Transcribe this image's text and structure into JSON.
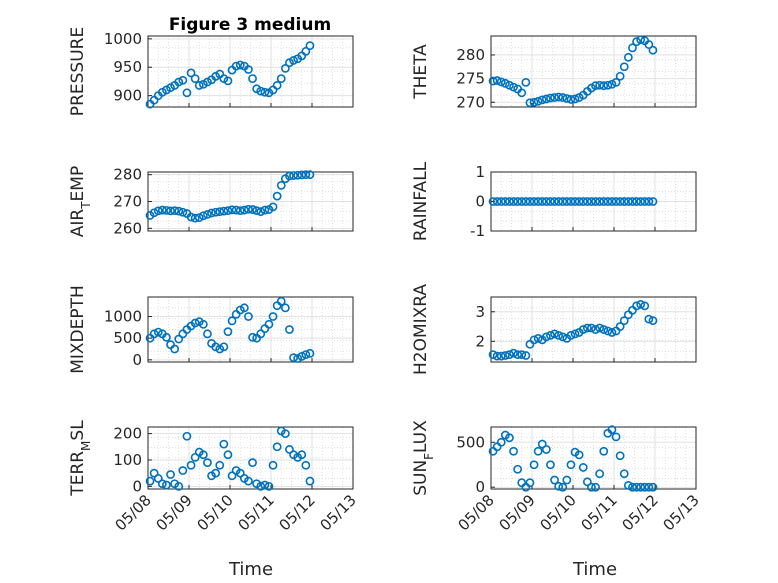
{
  "figure_title": "Figure 3 medium",
  "x_label": "Time",
  "x_ticks": [
    "05/08",
    "05/09",
    "05/10",
    "05/11",
    "05/12",
    "05/13"
  ],
  "marker_color": "#0072BD",
  "chart_data": [
    {
      "type": "scatter",
      "ylabel": "PRESSURE",
      "ylim": [
        880,
        1005
      ],
      "yticks": [
        900,
        950,
        1000
      ],
      "x": [
        0.05,
        0.15,
        0.25,
        0.35,
        0.45,
        0.55,
        0.65,
        0.75,
        0.85,
        0.95,
        1.05,
        1.15,
        1.25,
        1.35,
        1.45,
        1.55,
        1.65,
        1.75,
        1.85,
        1.95,
        2.05,
        2.15,
        2.25,
        2.35,
        2.45,
        2.55,
        2.65,
        2.75,
        2.85,
        2.95,
        3.05,
        3.15,
        3.25,
        3.35,
        3.45,
        3.55,
        3.65,
        3.75,
        3.85,
        3.95
      ],
      "y": [
        885,
        892,
        900,
        906,
        910,
        914,
        918,
        924,
        927,
        905,
        940,
        930,
        918,
        920,
        924,
        928,
        934,
        938,
        930,
        926,
        945,
        952,
        954,
        952,
        946,
        930,
        912,
        908,
        906,
        905,
        910,
        918,
        930,
        948,
        958,
        962,
        965,
        970,
        978,
        988
      ]
    },
    {
      "type": "scatter",
      "ylabel": "THETA",
      "ylim": [
        269,
        284
      ],
      "yticks": [
        270,
        275,
        280
      ],
      "x": [
        0.05,
        0.15,
        0.25,
        0.35,
        0.45,
        0.55,
        0.65,
        0.75,
        0.85,
        0.95,
        1.05,
        1.15,
        1.25,
        1.35,
        1.45,
        1.55,
        1.65,
        1.75,
        1.85,
        1.95,
        2.05,
        2.15,
        2.25,
        2.35,
        2.45,
        2.55,
        2.65,
        2.75,
        2.85,
        2.95,
        3.05,
        3.15,
        3.25,
        3.35,
        3.45,
        3.55,
        3.65,
        3.75,
        3.85,
        3.95
      ],
      "y": [
        274.5,
        274.6,
        274.3,
        274.0,
        273.6,
        273.2,
        272.8,
        272.0,
        274.2,
        269.9,
        270.0,
        270.2,
        270.5,
        270.7,
        270.9,
        271.0,
        271.1,
        271.0,
        270.8,
        270.6,
        270.7,
        271.0,
        271.5,
        272.3,
        273.0,
        273.5,
        273.6,
        273.5,
        273.6,
        273.8,
        274.2,
        275.5,
        277.5,
        279.5,
        281.5,
        282.8,
        283.2,
        283.0,
        282.2,
        281.0
      ]
    },
    {
      "type": "scatter",
      "ylabel": "AIR_TEMP",
      "ylim": [
        259,
        281
      ],
      "yticks": [
        260,
        270,
        280
      ],
      "x": [
        0.05,
        0.15,
        0.25,
        0.35,
        0.45,
        0.55,
        0.65,
        0.75,
        0.85,
        0.95,
        1.05,
        1.15,
        1.25,
        1.35,
        1.45,
        1.55,
        1.65,
        1.75,
        1.85,
        1.95,
        2.05,
        2.15,
        2.25,
        2.35,
        2.45,
        2.55,
        2.65,
        2.75,
        2.85,
        2.95,
        3.05,
        3.15,
        3.25,
        3.35,
        3.45,
        3.55,
        3.65,
        3.75,
        3.85,
        3.95
      ],
      "y": [
        264.8,
        265.8,
        266.5,
        266.8,
        266.7,
        266.5,
        266.6,
        266.4,
        266.0,
        265.5,
        264.2,
        263.8,
        264.0,
        264.7,
        265.2,
        265.7,
        266.0,
        266.2,
        266.4,
        266.6,
        266.9,
        266.8,
        266.6,
        266.8,
        267.1,
        267.0,
        266.6,
        266.2,
        266.8,
        267.0,
        268.0,
        272.0,
        276.0,
        278.5,
        279.5,
        279.7,
        279.8,
        279.9,
        280.0,
        280.0
      ]
    },
    {
      "type": "scatter",
      "ylabel": "RAINFALL",
      "ylim": [
        -1,
        1
      ],
      "yticks": [
        -1,
        0,
        1
      ],
      "x": [
        0.05,
        0.15,
        0.25,
        0.35,
        0.45,
        0.55,
        0.65,
        0.75,
        0.85,
        0.95,
        1.05,
        1.15,
        1.25,
        1.35,
        1.45,
        1.55,
        1.65,
        1.75,
        1.85,
        1.95,
        2.05,
        2.15,
        2.25,
        2.35,
        2.45,
        2.55,
        2.65,
        2.75,
        2.85,
        2.95,
        3.05,
        3.15,
        3.25,
        3.35,
        3.45,
        3.55,
        3.65,
        3.75,
        3.85,
        3.95
      ],
      "y": [
        0,
        0,
        0,
        0,
        0,
        0,
        0,
        0,
        0,
        0,
        0,
        0,
        0,
        0,
        0,
        0,
        0,
        0,
        0,
        0,
        0,
        0,
        0,
        0,
        0,
        0,
        0,
        0,
        0,
        0,
        0,
        0,
        0,
        0,
        0,
        0,
        0,
        0,
        0,
        0
      ]
    },
    {
      "type": "scatter",
      "ylabel": "MIXDEPTH",
      "ylim": [
        -50,
        1450
      ],
      "yticks": [
        0,
        500,
        1000
      ],
      "x": [
        0.05,
        0.15,
        0.25,
        0.35,
        0.45,
        0.55,
        0.65,
        0.75,
        0.85,
        0.95,
        1.05,
        1.15,
        1.25,
        1.35,
        1.45,
        1.55,
        1.65,
        1.75,
        1.85,
        1.95,
        2.05,
        2.15,
        2.25,
        2.35,
        2.45,
        2.55,
        2.65,
        2.75,
        2.85,
        2.95,
        3.05,
        3.15,
        3.25,
        3.35,
        3.45,
        3.55,
        3.65,
        3.75,
        3.85,
        3.95
      ],
      "y": [
        500,
        600,
        640,
        600,
        520,
        350,
        250,
        480,
        600,
        700,
        780,
        850,
        880,
        820,
        600,
        380,
        300,
        250,
        300,
        650,
        900,
        1050,
        1150,
        1200,
        1000,
        520,
        500,
        600,
        720,
        820,
        1000,
        1250,
        1350,
        1200,
        700,
        50,
        30,
        80,
        120,
        150
      ]
    },
    {
      "type": "scatter",
      "ylabel": "H2OMIXRA",
      "ylim": [
        1.3,
        3.5
      ],
      "yticks": [
        2,
        3
      ],
      "x": [
        0.05,
        0.15,
        0.25,
        0.35,
        0.45,
        0.55,
        0.65,
        0.75,
        0.85,
        0.95,
        1.05,
        1.15,
        1.25,
        1.35,
        1.45,
        1.55,
        1.65,
        1.75,
        1.85,
        1.95,
        2.05,
        2.15,
        2.25,
        2.35,
        2.45,
        2.55,
        2.65,
        2.75,
        2.85,
        2.95,
        3.05,
        3.15,
        3.25,
        3.35,
        3.45,
        3.55,
        3.65,
        3.75,
        3.85,
        3.95
      ],
      "y": [
        1.55,
        1.5,
        1.5,
        1.52,
        1.55,
        1.6,
        1.55,
        1.55,
        1.52,
        1.9,
        2.05,
        2.1,
        2.05,
        2.15,
        2.2,
        2.25,
        2.2,
        2.15,
        2.1,
        2.2,
        2.25,
        2.3,
        2.4,
        2.45,
        2.45,
        2.4,
        2.45,
        2.4,
        2.35,
        2.3,
        2.35,
        2.5,
        2.7,
        2.9,
        3.05,
        3.2,
        3.25,
        3.2,
        2.75,
        2.7
      ]
    },
    {
      "type": "scatter",
      "ylabel": "TERR_MSL",
      "ylim": [
        -10,
        225
      ],
      "yticks": [
        0,
        100,
        200
      ],
      "x": [
        0.05,
        0.15,
        0.25,
        0.35,
        0.45,
        0.55,
        0.65,
        0.75,
        0.85,
        0.95,
        1.05,
        1.15,
        1.25,
        1.35,
        1.45,
        1.55,
        1.65,
        1.75,
        1.85,
        1.95,
        2.05,
        2.15,
        2.25,
        2.35,
        2.45,
        2.55,
        2.65,
        2.75,
        2.85,
        2.95,
        3.05,
        3.15,
        3.25,
        3.35,
        3.45,
        3.55,
        3.65,
        3.75,
        3.85,
        3.95
      ],
      "y": [
        20,
        50,
        30,
        10,
        5,
        45,
        10,
        0,
        60,
        190,
        80,
        110,
        130,
        120,
        90,
        40,
        50,
        80,
        160,
        120,
        40,
        60,
        50,
        30,
        20,
        90,
        10,
        0,
        5,
        0,
        80,
        150,
        210,
        200,
        140,
        120,
        110,
        120,
        80,
        20
      ]
    },
    {
      "type": "scatter",
      "ylabel": "SUN_FLUX",
      "ylim": [
        -20,
        670
      ],
      "yticks": [
        0,
        500
      ],
      "x": [
        0.05,
        0.15,
        0.25,
        0.35,
        0.45,
        0.55,
        0.65,
        0.75,
        0.85,
        0.95,
        1.05,
        1.15,
        1.25,
        1.35,
        1.45,
        1.55,
        1.65,
        1.75,
        1.85,
        1.95,
        2.05,
        2.15,
        2.25,
        2.35,
        2.45,
        2.55,
        2.65,
        2.75,
        2.85,
        2.95,
        3.05,
        3.15,
        3.25,
        3.35,
        3.45,
        3.55,
        3.65,
        3.75,
        3.85,
        3.95
      ],
      "y": [
        400,
        450,
        500,
        580,
        550,
        400,
        200,
        50,
        0,
        50,
        250,
        400,
        480,
        420,
        250,
        80,
        10,
        0,
        80,
        250,
        390,
        360,
        220,
        60,
        0,
        0,
        150,
        400,
        600,
        640,
        560,
        350,
        150,
        20,
        0,
        0,
        0,
        0,
        0,
        0
      ]
    }
  ]
}
